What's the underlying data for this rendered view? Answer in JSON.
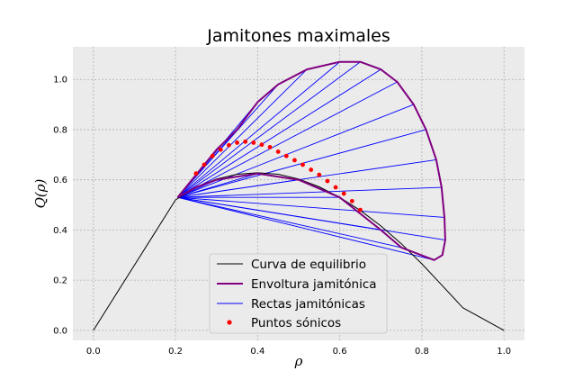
{
  "chart_data": {
    "type": "line",
    "title": "Jamitones maximales",
    "xlabel": "ρ",
    "ylabel": "Q(ρ)",
    "xlim": [
      -0.05,
      1.05
    ],
    "ylim": [
      -0.04,
      1.13
    ],
    "xticks": [
      "0.0",
      "0.2",
      "0.4",
      "0.6",
      "0.8",
      "1.0"
    ],
    "yticks": [
      "0.0",
      "0.2",
      "0.4",
      "0.6",
      "0.8",
      "1.0"
    ],
    "grid": true,
    "legend_position": "lower-center",
    "legend": [
      {
        "label": "Curva de equilibrio",
        "color": "#000000",
        "kind": "line"
      },
      {
        "label": "Envoltura jamitónica",
        "color": "#800080",
        "kind": "line"
      },
      {
        "label": "Rectas jamitónicas",
        "color": "#0000ff",
        "kind": "line"
      },
      {
        "label": "Puntos sónicos",
        "color": "#ff0000",
        "kind": "marker"
      }
    ],
    "series": [
      {
        "name": "Curva de equilibrio",
        "color": "#000000",
        "points": [
          [
            0.0,
            0.0
          ],
          [
            0.05,
            0.13
          ],
          [
            0.1,
            0.26
          ],
          [
            0.15,
            0.39
          ],
          [
            0.2,
            0.52
          ],
          [
            0.25,
            0.57
          ],
          [
            0.3,
            0.603
          ],
          [
            0.35,
            0.622
          ],
          [
            0.4,
            0.628
          ],
          [
            0.45,
            0.622
          ],
          [
            0.5,
            0.603
          ],
          [
            0.55,
            0.572
          ],
          [
            0.6,
            0.53
          ],
          [
            0.65,
            0.478
          ],
          [
            0.7,
            0.416
          ],
          [
            0.75,
            0.345
          ],
          [
            0.8,
            0.265
          ],
          [
            0.85,
            0.178
          ],
          [
            0.9,
            0.09
          ],
          [
            1.0,
            0.0
          ]
        ]
      },
      {
        "name": "Envoltura jamitónica",
        "color": "#800080",
        "points": [
          [
            0.205,
            0.53
          ],
          [
            0.25,
            0.62
          ],
          [
            0.3,
            0.72
          ],
          [
            0.35,
            0.8
          ],
          [
            0.4,
            0.91
          ],
          [
            0.45,
            0.98
          ],
          [
            0.52,
            1.04
          ],
          [
            0.6,
            1.07
          ],
          [
            0.65,
            1.07
          ],
          [
            0.7,
            1.04
          ],
          [
            0.74,
            0.99
          ],
          [
            0.78,
            0.9
          ],
          [
            0.81,
            0.8
          ],
          [
            0.835,
            0.68
          ],
          [
            0.848,
            0.57
          ],
          [
            0.855,
            0.45
          ],
          [
            0.857,
            0.36
          ],
          [
            0.85,
            0.3
          ],
          [
            0.83,
            0.28
          ],
          [
            0.75,
            0.33
          ],
          [
            0.7,
            0.4
          ],
          [
            0.6,
            0.53
          ],
          [
            0.5,
            0.6
          ],
          [
            0.4,
            0.625
          ],
          [
            0.3,
            0.6
          ],
          [
            0.25,
            0.57
          ],
          [
            0.205,
            0.53
          ]
        ]
      },
      {
        "name": "Puntos sónicos",
        "color": "#ff0000",
        "points": [
          [
            0.25,
            0.625
          ],
          [
            0.27,
            0.66
          ],
          [
            0.29,
            0.695
          ],
          [
            0.31,
            0.72
          ],
          [
            0.33,
            0.738
          ],
          [
            0.35,
            0.748
          ],
          [
            0.37,
            0.752
          ],
          [
            0.39,
            0.748
          ],
          [
            0.41,
            0.74
          ],
          [
            0.43,
            0.73
          ],
          [
            0.45,
            0.712
          ],
          [
            0.47,
            0.695
          ],
          [
            0.49,
            0.678
          ],
          [
            0.51,
            0.66
          ],
          [
            0.53,
            0.64
          ],
          [
            0.55,
            0.62
          ],
          [
            0.57,
            0.595
          ],
          [
            0.59,
            0.57
          ],
          [
            0.61,
            0.545
          ],
          [
            0.63,
            0.515
          ],
          [
            0.65,
            0.48
          ]
        ]
      }
    ],
    "jamiton_lines": {
      "name": "Rectas jamitónicas",
      "color": "#0000ff",
      "start": [
        0.205,
        0.53
      ],
      "endpoints": [
        [
          0.25,
          0.62
        ],
        [
          0.3,
          0.72
        ],
        [
          0.35,
          0.8
        ],
        [
          0.4,
          0.91
        ],
        [
          0.45,
          0.98
        ],
        [
          0.52,
          1.04
        ],
        [
          0.6,
          1.07
        ],
        [
          0.65,
          1.07
        ],
        [
          0.7,
          1.04
        ],
        [
          0.74,
          0.99
        ],
        [
          0.78,
          0.9
        ],
        [
          0.81,
          0.8
        ],
        [
          0.835,
          0.68
        ],
        [
          0.848,
          0.57
        ],
        [
          0.855,
          0.45
        ],
        [
          0.857,
          0.36
        ],
        [
          0.83,
          0.28
        ],
        [
          0.75,
          0.33
        ],
        [
          0.7,
          0.4
        ],
        [
          0.6,
          0.53
        ],
        [
          0.5,
          0.6
        ],
        [
          0.4,
          0.625
        ],
        [
          0.3,
          0.6
        ]
      ]
    }
  }
}
